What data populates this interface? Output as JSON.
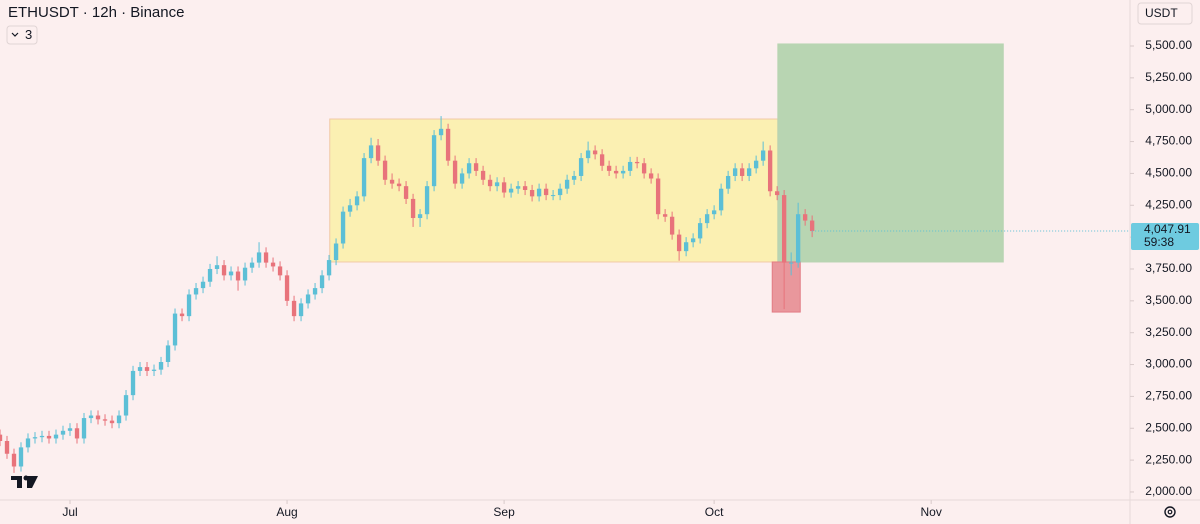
{
  "chart_data": {
    "type": "candlestick",
    "title": "ETHUSDT · 12h · Binance",
    "indicator_count": 3,
    "currency": "USDT",
    "last_price": {
      "value": 4047.91,
      "label": "4,047.91"
    },
    "countdown": "59:38",
    "up_color": "#5cbfd6",
    "down_color": "#e8737b",
    "xlim": [
      -10,
      151.4
    ],
    "ylim": [
      1937,
      5861
    ],
    "xticks": [
      {
        "value": 0,
        "label": "Jul"
      },
      {
        "value": 31,
        "label": "Aug"
      },
      {
        "value": 62,
        "label": "Sep"
      },
      {
        "value": 92,
        "label": "Oct"
      },
      {
        "value": 123,
        "label": "Nov"
      }
    ],
    "yticks": [
      {
        "value": 2000,
        "label": "2,000.00"
      },
      {
        "value": 2250,
        "label": "2,250.00"
      },
      {
        "value": 2500,
        "label": "2,500.00"
      },
      {
        "value": 2750,
        "label": "2,750.00"
      },
      {
        "value": 3000,
        "label": "3,000.00"
      },
      {
        "value": 3250,
        "label": "3,250.00"
      },
      {
        "value": 3500,
        "label": "3,500.00"
      },
      {
        "value": 3750,
        "label": "3,750.00"
      },
      {
        "value": 4000,
        "label": "4,000.00"
      },
      {
        "value": 4250,
        "label": "4,250.00"
      },
      {
        "value": 4500,
        "label": "4,500.00"
      },
      {
        "value": 4750,
        "label": "4,750.00"
      },
      {
        "value": 5000,
        "label": "5,000.00"
      },
      {
        "value": 5250,
        "label": "5,250.00"
      },
      {
        "value": 5500,
        "label": "5,500.00"
      }
    ],
    "drawings": [
      {
        "x": [
          37.1,
          101.1
        ],
        "y": [
          3805,
          4927
        ],
        "color": "#fbf0b2",
        "border": "#f2c9a6"
      },
      {
        "x": [
          101.1,
          133.3
        ],
        "y": [
          3805,
          5516
        ],
        "color": "#b8d5b2",
        "border": "#b8d5b2"
      },
      {
        "x": [
          100.3,
          104.3
        ],
        "y": [
          3412,
          3805
        ],
        "color": "#e9979c",
        "border": "#e27c84"
      }
    ],
    "x": [
      -10,
      -9,
      -8,
      -7,
      -6,
      -5,
      -4,
      -3,
      -2,
      -1,
      0,
      1,
      2,
      3,
      4,
      5,
      6,
      7,
      8,
      9,
      10,
      11,
      12,
      13,
      14,
      15,
      16,
      17,
      18,
      19,
      20,
      21,
      22,
      23,
      24,
      25,
      26,
      27,
      28,
      29,
      30,
      31,
      32,
      33,
      34,
      35,
      36,
      37,
      38,
      39,
      40,
      41,
      42,
      43,
      44,
      45,
      46,
      47,
      48,
      49,
      50,
      51,
      52,
      53,
      54,
      55,
      56,
      57,
      58,
      59,
      60,
      61,
      62,
      63,
      64,
      65,
      66,
      67,
      68,
      69,
      70,
      71,
      72,
      73,
      74,
      75,
      76,
      77,
      78,
      79,
      80,
      81,
      82,
      83,
      84,
      85,
      86,
      87,
      88,
      89,
      90,
      91,
      92,
      93,
      94,
      95,
      96,
      97,
      98,
      99,
      100,
      101,
      102,
      103,
      104,
      105,
      106
    ],
    "open": [
      2450,
      2400,
      2300,
      2200,
      2350,
      2420,
      2430,
      2440,
      2420,
      2450,
      2480,
      2500,
      2420,
      2580,
      2600,
      2570,
      2560,
      2540,
      2600,
      2760,
      2950,
      2980,
      2950,
      2960,
      3020,
      3150,
      3400,
      3380,
      3550,
      3600,
      3650,
      3750,
      3780,
      3700,
      3730,
      3660,
      3760,
      3800,
      3880,
      3800,
      3770,
      3700,
      3500,
      3380,
      3480,
      3550,
      3600,
      3700,
      3820,
      3950,
      4200,
      4250,
      4320,
      4620,
      4720,
      4600,
      4450,
      4420,
      4400,
      4300,
      4150,
      4180,
      4400,
      4800,
      4850,
      4600,
      4420,
      4500,
      4580,
      4520,
      4450,
      4400,
      4430,
      4350,
      4380,
      4400,
      4370,
      4320,
      4380,
      4330,
      4330,
      4380,
      4450,
      4480,
      4620,
      4680,
      4650,
      4560,
      4520,
      4500,
      4520,
      4590,
      4580,
      4500,
      4460,
      4180,
      4160,
      4020,
      3890,
      3960,
      3990,
      4110,
      4180,
      4210,
      4380,
      4480,
      4540,
      4480,
      4540,
      4600,
      4680,
      4360,
      4330,
      3800,
      3800,
      4180,
      4130
    ],
    "high": [
      2490,
      2440,
      2340,
      2390,
      2460,
      2470,
      2480,
      2480,
      2490,
      2520,
      2540,
      2540,
      2620,
      2640,
      2640,
      2610,
      2600,
      2640,
      2800,
      2990,
      3020,
      3020,
      3000,
      3060,
      3190,
      3440,
      3440,
      3590,
      3640,
      3690,
      3790,
      3850,
      3820,
      3770,
      3770,
      3800,
      3840,
      3960,
      3920,
      3840,
      3810,
      3740,
      3540,
      3520,
      3590,
      3640,
      3740,
      3860,
      3990,
      4240,
      4300,
      4360,
      4660,
      4780,
      4770,
      4640,
      4500,
      4460,
      4440,
      4340,
      4220,
      4440,
      4840,
      4950,
      4890,
      4640,
      4540,
      4620,
      4620,
      4560,
      4490,
      4470,
      4470,
      4420,
      4440,
      4440,
      4410,
      4420,
      4420,
      4370,
      4420,
      4490,
      4520,
      4660,
      4750,
      4720,
      4690,
      4600,
      4560,
      4560,
      4630,
      4630,
      4620,
      4540,
      4500,
      4220,
      4200,
      4060,
      4000,
      4030,
      4150,
      4220,
      4250,
      4420,
      4520,
      4580,
      4580,
      4580,
      4640,
      4750,
      4720,
      4400,
      4370,
      3880,
      4270,
      4220,
      4170
    ],
    "low": [
      2360,
      2260,
      2150,
      2160,
      2310,
      2380,
      2390,
      2380,
      2380,
      2410,
      2440,
      2380,
      2380,
      2540,
      2530,
      2520,
      2500,
      2500,
      2560,
      2720,
      2910,
      2910,
      2910,
      2920,
      2980,
      3110,
      3340,
      3340,
      3510,
      3560,
      3610,
      3710,
      3660,
      3660,
      3580,
      3620,
      3720,
      3760,
      3760,
      3730,
      3660,
      3460,
      3340,
      3340,
      3440,
      3510,
      3560,
      3660,
      3780,
      3910,
      4160,
      4210,
      4280,
      4580,
      4560,
      4410,
      4380,
      4360,
      4260,
      4080,
      4080,
      4140,
      4360,
      4760,
      4560,
      4380,
      4380,
      4460,
      4480,
      4410,
      4360,
      4360,
      4310,
      4310,
      4340,
      4330,
      4280,
      4280,
      4290,
      4290,
      4290,
      4340,
      4410,
      4440,
      4580,
      4610,
      4520,
      4480,
      4460,
      4460,
      4480,
      4540,
      4460,
      4420,
      4140,
      4120,
      3980,
      3815,
      3850,
      3920,
      3950,
      4070,
      4140,
      4170,
      4340,
      4440,
      4440,
      4440,
      4500,
      4560,
      4320,
      4290,
      3435,
      3700,
      3760,
      4090,
      4000
    ],
    "close": [
      2400,
      2300,
      2200,
      2350,
      2420,
      2430,
      2440,
      2420,
      2450,
      2480,
      2500,
      2420,
      2580,
      2600,
      2570,
      2560,
      2540,
      2600,
      2760,
      2950,
      2980,
      2950,
      2960,
      3020,
      3150,
      3400,
      3380,
      3550,
      3600,
      3650,
      3750,
      3780,
      3700,
      3730,
      3660,
      3760,
      3800,
      3880,
      3800,
      3770,
      3700,
      3500,
      3380,
      3480,
      3550,
      3600,
      3700,
      3820,
      3950,
      4200,
      4250,
      4320,
      4620,
      4720,
      4600,
      4450,
      4420,
      4400,
      4300,
      4150,
      4180,
      4400,
      4800,
      4850,
      4600,
      4420,
      4500,
      4580,
      4520,
      4450,
      4400,
      4430,
      4350,
      4380,
      4400,
      4370,
      4320,
      4380,
      4330,
      4330,
      4380,
      4450,
      4480,
      4620,
      4680,
      4650,
      4560,
      4520,
      4500,
      4520,
      4590,
      4580,
      4500,
      4460,
      4180,
      4160,
      4020,
      3890,
      3960,
      3990,
      4110,
      4180,
      4210,
      4380,
      4480,
      4540,
      4480,
      4540,
      4600,
      4680,
      4360,
      4330,
      3800,
      3800,
      4180,
      4130,
      4047.91
    ]
  }
}
